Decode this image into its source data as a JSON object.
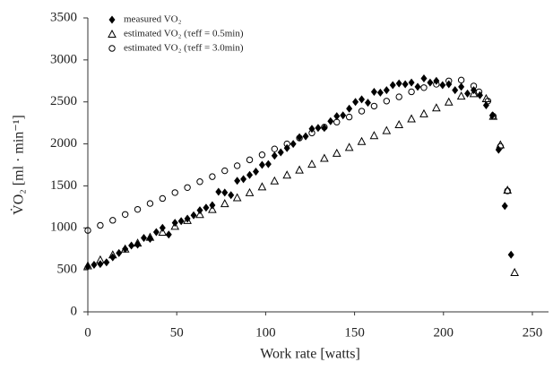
{
  "chart_data": {
    "type": "scatter",
    "xlabel": "Work rate [watts]",
    "ylabel": "V̇O₂ [ml · min⁻¹]",
    "xlim": [
      0,
      250
    ],
    "xticks": [
      0,
      50,
      100,
      150,
      200,
      250
    ],
    "ylim": [
      0,
      3500
    ],
    "yticks": [
      0,
      500,
      1000,
      1500,
      2000,
      2500,
      3000,
      3500
    ],
    "grid": false,
    "legend": "upper left",
    "series": [
      {
        "name": "measured VO₂",
        "color": "#000000",
        "marker": "diamond",
        "x": [
          0,
          3.5,
          7,
          10.5,
          14,
          17.5,
          21,
          24.5,
          28,
          31.5,
          35,
          38.5,
          42,
          45.5,
          49,
          52.5,
          56,
          59.5,
          63,
          66.5,
          70,
          73.5,
          77,
          80.5,
          84,
          87.5,
          91,
          94.5,
          98,
          101.5,
          105,
          108.5,
          112,
          115.5,
          119,
          122.5,
          126,
          129.5,
          133,
          136.5,
          140,
          143.5,
          147,
          150.5,
          154,
          157.5,
          161,
          164.5,
          168,
          171.5,
          175,
          178.5,
          182,
          185.5,
          189,
          192.5,
          196,
          199.5,
          203,
          206.5,
          210,
          213.5,
          217,
          220.5,
          224,
          227.5,
          231,
          234.5,
          238
        ],
        "values": [
          540,
          560,
          570,
          590,
          650,
          700,
          750,
          790,
          800,
          880,
          870,
          950,
          1000,
          920,
          1060,
          1080,
          1110,
          1150,
          1210,
          1240,
          1270,
          1430,
          1420,
          1390,
          1560,
          1580,
          1630,
          1670,
          1750,
          1760,
          1860,
          1900,
          1950,
          2000,
          2080,
          2090,
          2180,
          2190,
          2190,
          2270,
          2330,
          2340,
          2420,
          2500,
          2530,
          2490,
          2620,
          2610,
          2640,
          2700,
          2720,
          2710,
          2730,
          2680,
          2780,
          2730,
          2750,
          2700,
          2710,
          2640,
          2680,
          2600,
          2640,
          2580,
          2460,
          2340,
          1930,
          1260,
          680
        ]
      },
      {
        "name": "estimated VO₂ (τeff = 0.5min)",
        "color": "#000000",
        "marker": "triangle",
        "x": [
          0,
          7,
          14,
          21,
          28,
          35,
          42,
          49,
          56,
          63,
          70,
          77,
          84,
          91,
          98,
          105,
          112,
          119,
          126,
          133,
          140,
          147,
          154,
          161,
          168,
          175,
          182,
          189,
          196,
          203,
          210,
          217,
          224,
          228,
          232,
          236,
          240
        ],
        "values": [
          550,
          620,
          680,
          750,
          820,
          890,
          950,
          1020,
          1090,
          1160,
          1220,
          1290,
          1360,
          1420,
          1490,
          1560,
          1630,
          1690,
          1760,
          1830,
          1890,
          1960,
          2030,
          2100,
          2160,
          2230,
          2300,
          2360,
          2430,
          2500,
          2570,
          2600,
          2540,
          2330,
          1990,
          1450,
          470
        ]
      },
      {
        "name": "estimated VO₂ (τeff = 3.0min)",
        "color": "#000000",
        "marker": "circle",
        "x": [
          0,
          7,
          14,
          21,
          28,
          35,
          42,
          49,
          56,
          63,
          70,
          77,
          84,
          91,
          98,
          105,
          112,
          119,
          126,
          133,
          140,
          147,
          154,
          161,
          168,
          175,
          182,
          189,
          196,
          203,
          210,
          217,
          220,
          225,
          228,
          232,
          236
        ],
        "values": [
          970,
          1030,
          1090,
          1160,
          1220,
          1290,
          1350,
          1420,
          1480,
          1550,
          1610,
          1680,
          1740,
          1810,
          1870,
          1940,
          2000,
          2070,
          2130,
          2200,
          2260,
          2320,
          2390,
          2450,
          2510,
          2560,
          2620,
          2670,
          2710,
          2750,
          2760,
          2690,
          2620,
          2510,
          2330,
          1970,
          1440
        ]
      }
    ]
  }
}
